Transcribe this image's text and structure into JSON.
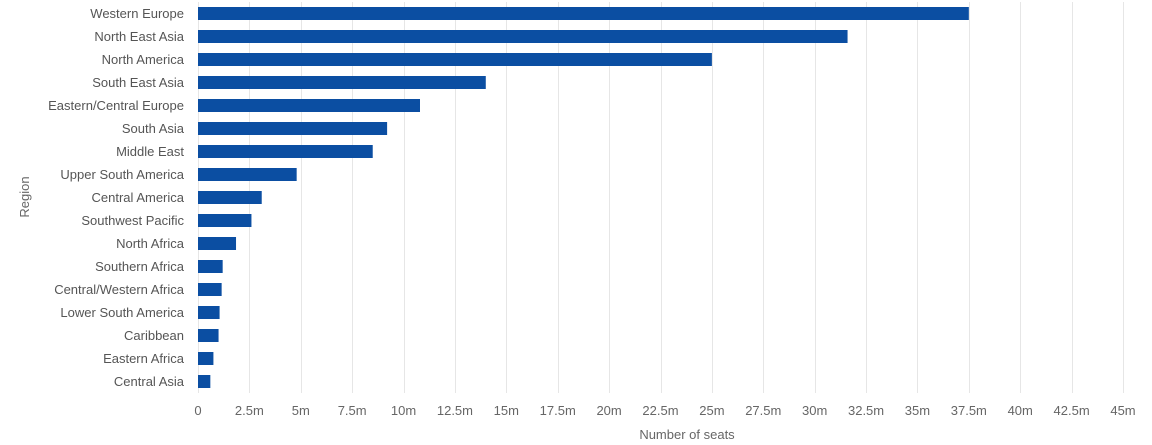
{
  "chart_data": {
    "type": "bar",
    "orientation": "horizontal",
    "categories": [
      "Western Europe",
      "North East Asia",
      "North America",
      "South East Asia",
      "Eastern/Central Europe",
      "South Asia",
      "Middle East",
      "Upper South America",
      "Central America",
      "Southwest Pacific",
      "North Africa",
      "Southern Africa",
      "Central/Western Africa",
      "Lower South America",
      "Caribbean",
      "Eastern Africa",
      "Central Asia"
    ],
    "values": [
      37.5,
      31.6,
      25.0,
      14.0,
      10.8,
      9.2,
      8.5,
      4.8,
      3.1,
      2.6,
      1.85,
      1.2,
      1.15,
      1.05,
      1.0,
      0.75,
      0.6
    ],
    "xlabel": "Number of seats",
    "ylabel": "Region",
    "xlim": [
      0,
      45
    ],
    "x_ticks": [
      0,
      2.5,
      5,
      7.5,
      10,
      12.5,
      15,
      17.5,
      20,
      22.5,
      25,
      27.5,
      30,
      32.5,
      35,
      37.5,
      40,
      42.5,
      45
    ],
    "x_tick_labels": [
      "0",
      "2.5m",
      "5m",
      "7.5m",
      "10m",
      "12.5m",
      "15m",
      "17.5m",
      "20m",
      "22.5m",
      "25m",
      "27.5m",
      "30m",
      "32.5m",
      "35m",
      "37.5m",
      "40m",
      "42.5m",
      "45m"
    ],
    "grid": true,
    "legend": "none",
    "bar_color": "#0b4ea2"
  }
}
